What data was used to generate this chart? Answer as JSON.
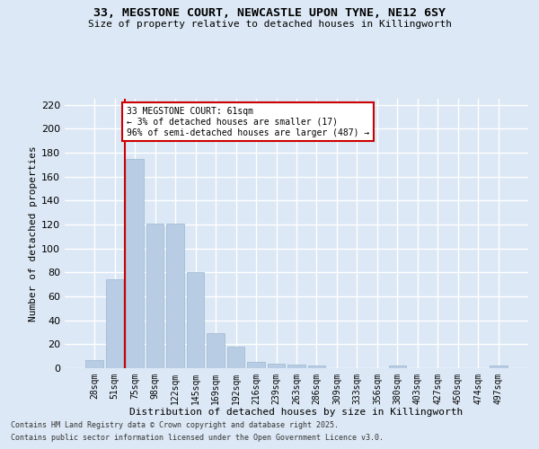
{
  "title_line1": "33, MEGSTONE COURT, NEWCASTLE UPON TYNE, NE12 6SY",
  "title_line2": "Size of property relative to detached houses in Killingworth",
  "xlabel": "Distribution of detached houses by size in Killingworth",
  "ylabel": "Number of detached properties",
  "categories": [
    "28sqm",
    "51sqm",
    "75sqm",
    "98sqm",
    "122sqm",
    "145sqm",
    "169sqm",
    "192sqm",
    "216sqm",
    "239sqm",
    "263sqm",
    "286sqm",
    "309sqm",
    "333sqm",
    "356sqm",
    "380sqm",
    "403sqm",
    "427sqm",
    "450sqm",
    "474sqm",
    "497sqm"
  ],
  "values": [
    7,
    74,
    175,
    121,
    121,
    80,
    29,
    18,
    5,
    4,
    3,
    2,
    0,
    0,
    0,
    2,
    0,
    0,
    0,
    0,
    2
  ],
  "bar_color": "#b8cce4",
  "bar_edge_color": "#9ab8d0",
  "background_color": "#dce8f5",
  "grid_color": "#ffffff",
  "annotation_text": "33 MEGSTONE COURT: 61sqm\n← 3% of detached houses are smaller (17)\n96% of semi-detached houses are larger (487) →",
  "annotation_box_color": "#ffffff",
  "annotation_box_edge_color": "#cc0000",
  "property_line_color": "#cc0000",
  "ylim": [
    0,
    225
  ],
  "yticks": [
    0,
    20,
    40,
    60,
    80,
    100,
    120,
    140,
    160,
    180,
    200,
    220
  ],
  "footer_line1": "Contains HM Land Registry data © Crown copyright and database right 2025.",
  "footer_line2": "Contains public sector information licensed under the Open Government Licence v3.0."
}
